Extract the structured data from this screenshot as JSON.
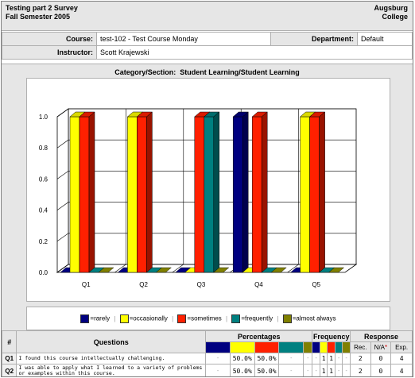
{
  "header": {
    "title_line1": "Testing part 2 Survey",
    "title_line2": "Fall Semester 2005",
    "org_line1": "Augsburg",
    "org_line2": "College"
  },
  "info": {
    "course_label": "Course:",
    "course_value": "test-102 - Test Course Monday",
    "department_label": "Department:",
    "department_value": "Default",
    "instructor_label": "Instructor:",
    "instructor_value": "Scott Krajewski"
  },
  "category": {
    "label": "Category",
    "sep": "/",
    "section": "Section:",
    "value1": "Student Learning",
    "value2": "Student Learning"
  },
  "colors": {
    "rarely": "#000080",
    "occasionally": "#ffff00",
    "sometimes": "#ff2000",
    "frequently": "#008080",
    "almost_always": "#808000"
  },
  "chart_data": {
    "type": "bar",
    "categories": [
      "Q1",
      "Q2",
      "Q3",
      "Q4",
      "Q5"
    ],
    "ylim": [
      0,
      1.0
    ],
    "yticks": [
      "0.0",
      "0.2",
      "0.4",
      "0.6",
      "0.8",
      "1.0"
    ],
    "series": [
      {
        "name": "=rarely",
        "values": [
          0,
          0,
          0,
          1.0,
          0
        ]
      },
      {
        "name": "=occasionally",
        "values": [
          1.0,
          1.0,
          0,
          0,
          1.0
        ]
      },
      {
        "name": "=sometimes",
        "values": [
          1.0,
          1.0,
          1.0,
          1.0,
          1.0
        ]
      },
      {
        "name": "=frequently",
        "values": [
          0,
          0,
          1.0,
          0,
          0
        ]
      },
      {
        "name": "=almost always",
        "values": [
          0,
          0,
          0,
          0,
          0
        ]
      }
    ],
    "legend_position": "bottom"
  },
  "legend": {
    "rarely": "=rarely",
    "occasionally": "=occasionally",
    "sometimes": "=sometimes",
    "frequently": "=frequently",
    "almost_always": "=almost always",
    "sep": "|"
  },
  "table": {
    "col_hash": "#",
    "col_questions": "Questions",
    "col_percentages": "Percentages",
    "col_frequency": "Frequency",
    "col_response": "Response",
    "resp_rec": "Rec.",
    "resp_na": "N/A",
    "resp_na_mark": "*",
    "resp_exp": "Exp.",
    "rows": [
      {
        "num": "Q1",
        "text": "I found this course intellectually challenging.",
        "pct": [
          "-",
          "50.0%",
          "50.0%",
          "-",
          "-"
        ],
        "freq": [
          "-",
          "1",
          "1",
          "-",
          "-"
        ],
        "rec": "2",
        "na": "0",
        "exp": "4"
      },
      {
        "num": "Q2",
        "text": "I was able to apply what I learned to a variety of problems or examples within this course.",
        "pct": [
          "-",
          "50.0%",
          "50.0%",
          "-",
          "-"
        ],
        "freq": [
          "-",
          "1",
          "1",
          "-",
          "-"
        ],
        "rec": "2",
        "na": "0",
        "exp": "4"
      }
    ]
  }
}
